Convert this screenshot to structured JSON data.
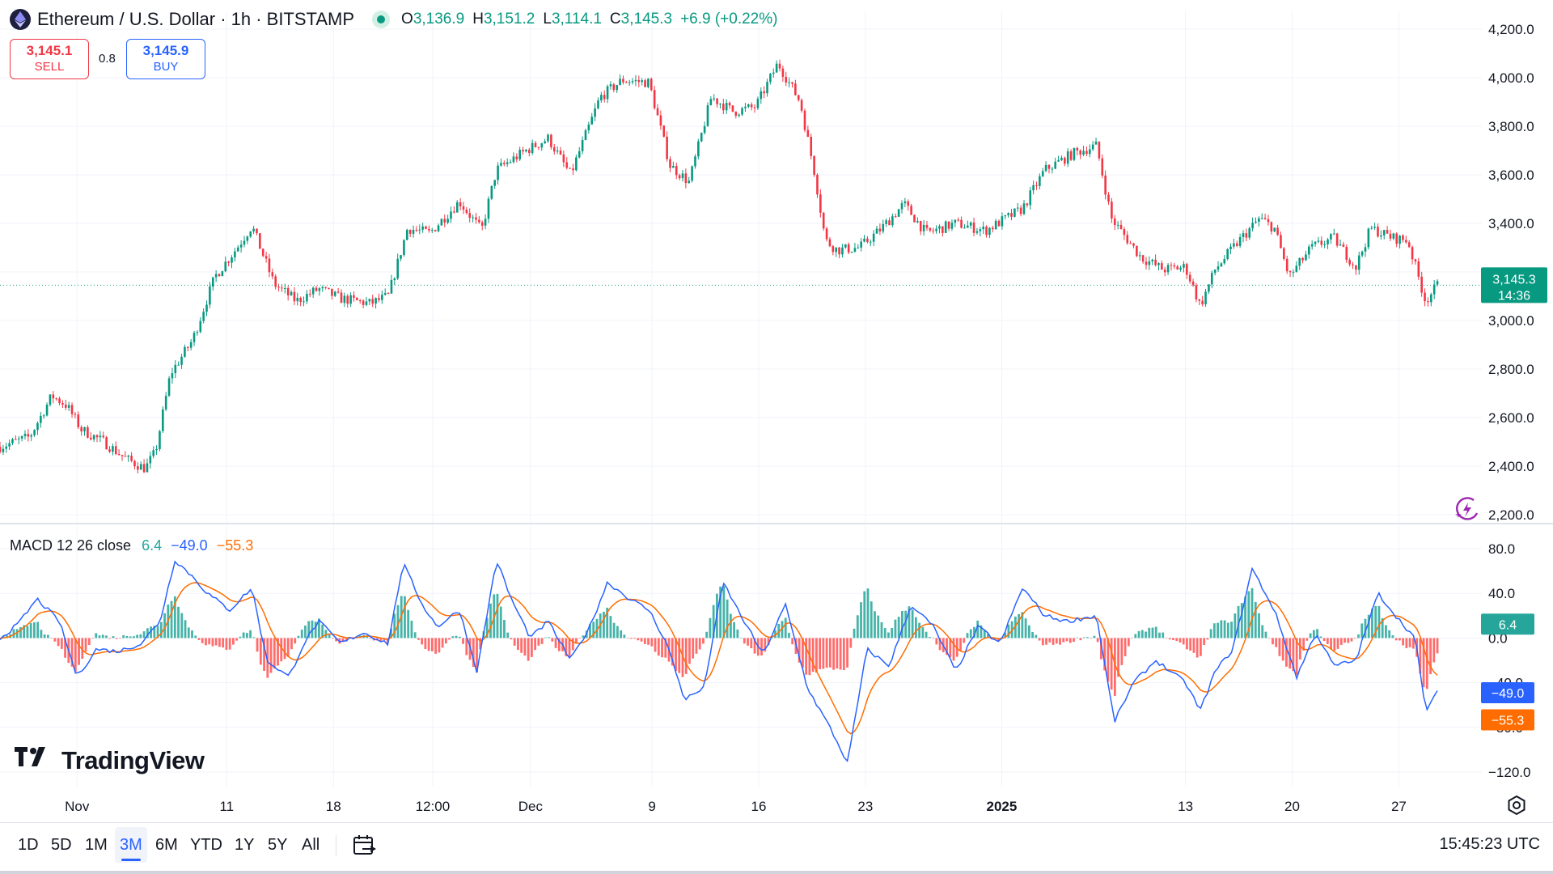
{
  "header": {
    "symbol": "Ethereum / U.S. Dollar · 1h · BITSTAMP",
    "ohlc": {
      "o": "3,136.9",
      "h": "3,151.2",
      "l": "3,114.1",
      "c": "3,145.3"
    },
    "ohlc_labels": {
      "o": "O",
      "h": "H",
      "l": "L",
      "c": "C"
    },
    "change": "+6.9 (+0.22%)"
  },
  "trade": {
    "sell_price": "3,145.1",
    "sell_label": "SELL",
    "spread": "0.8",
    "buy_price": "3,145.9",
    "buy_label": "BUY"
  },
  "macd_legend": {
    "name": "MACD 12 26 close",
    "hist": "6.4",
    "macd": "−49.0",
    "signal": "−55.3"
  },
  "brand": "TradingView",
  "timeframes": [
    "1D",
    "5D",
    "1M",
    "3M",
    "6M",
    "YTD",
    "1Y",
    "5Y",
    "All"
  ],
  "active_timeframe": "3M",
  "clock": "15:45:23 UTC",
  "colors": {
    "up": "#089981",
    "down": "#f23645",
    "macd": "#2962ff",
    "signal": "#ff6d00",
    "hist_up": "#26a69a",
    "hist_down": "#ff5252"
  },
  "icons": [
    "ethereum-icon",
    "live-dot-icon",
    "calendar-range-icon",
    "gear-icon",
    "ai-assistant-icon"
  ],
  "chart_data": [
    {
      "type": "candlestick",
      "title": "Ethereum / U.S. Dollar · 1h · BITSTAMP",
      "ylim": [
        2200,
        4200
      ],
      "y_ticks": [
        "4,200.0",
        "4,000.0",
        "3,800.0",
        "3,600.0",
        "3,400.0",
        "3,200.0",
        "3,000.0",
        "2,800.0",
        "2,600.0",
        "2,400.0",
        "2,200.0"
      ],
      "y_tick_values": [
        4200,
        4000,
        3800,
        3600,
        3400,
        3200,
        3000,
        2800,
        2600,
        2400,
        2200
      ],
      "x_ticks": [
        {
          "label": "Nov",
          "bold": false
        },
        {
          "label": "11",
          "bold": false
        },
        {
          "label": "18",
          "bold": false
        },
        {
          "label": "12:00",
          "bold": false
        },
        {
          "label": "Dec",
          "bold": false
        },
        {
          "label": "9",
          "bold": false
        },
        {
          "label": "16",
          "bold": false
        },
        {
          "label": "23",
          "bold": false
        },
        {
          "label": "2025",
          "bold": true
        },
        {
          "label": "13",
          "bold": false
        },
        {
          "label": "20",
          "bold": false
        },
        {
          "label": "27",
          "bold": false
        }
      ],
      "x_tick_index": [
        0.052,
        0.153,
        0.225,
        0.292,
        0.358,
        0.44,
        0.512,
        0.584,
        0.676,
        0.8,
        0.872,
        0.944
      ],
      "last_price": 3145.3,
      "last_price_label": "3,145.3",
      "countdown": "14:36",
      "close_path": [
        [
          0,
          2480
        ],
        [
          0.02,
          2520
        ],
        [
          0.035,
          2690
        ],
        [
          0.045,
          2650
        ],
        [
          0.055,
          2550
        ],
        [
          0.07,
          2500
        ],
        [
          0.085,
          2430
        ],
        [
          0.098,
          2390
        ],
        [
          0.105,
          2460
        ],
        [
          0.115,
          2780
        ],
        [
          0.13,
          2920
        ],
        [
          0.145,
          3180
        ],
        [
          0.16,
          3300
        ],
        [
          0.17,
          3390
        ],
        [
          0.185,
          3150
        ],
        [
          0.2,
          3080
        ],
        [
          0.215,
          3130
        ],
        [
          0.23,
          3090
        ],
        [
          0.25,
          3070
        ],
        [
          0.262,
          3100
        ],
        [
          0.275,
          3380
        ],
        [
          0.29,
          3360
        ],
        [
          0.31,
          3490
        ],
        [
          0.325,
          3370
        ],
        [
          0.335,
          3620
        ],
        [
          0.355,
          3700
        ],
        [
          0.37,
          3750
        ],
        [
          0.385,
          3600
        ],
        [
          0.405,
          3920
        ],
        [
          0.42,
          3990
        ],
        [
          0.438,
          3980
        ],
        [
          0.452,
          3640
        ],
        [
          0.465,
          3570
        ],
        [
          0.48,
          3920
        ],
        [
          0.495,
          3860
        ],
        [
          0.51,
          3880
        ],
        [
          0.525,
          4060
        ],
        [
          0.54,
          3900
        ],
        [
          0.55,
          3600
        ],
        [
          0.557,
          3330
        ],
        [
          0.565,
          3290
        ],
        [
          0.58,
          3300
        ],
        [
          0.595,
          3380
        ],
        [
          0.61,
          3480
        ],
        [
          0.625,
          3360
        ],
        [
          0.645,
          3400
        ],
        [
          0.665,
          3370
        ],
        [
          0.69,
          3460
        ],
        [
          0.705,
          3620
        ],
        [
          0.725,
          3690
        ],
        [
          0.74,
          3720
        ],
        [
          0.75,
          3420
        ],
        [
          0.77,
          3260
        ],
        [
          0.785,
          3210
        ],
        [
          0.8,
          3220
        ],
        [
          0.81,
          3060
        ],
        [
          0.82,
          3210
        ],
        [
          0.835,
          3320
        ],
        [
          0.85,
          3420
        ],
        [
          0.86,
          3380
        ],
        [
          0.87,
          3180
        ],
        [
          0.885,
          3300
        ],
        [
          0.9,
          3340
        ],
        [
          0.915,
          3220
        ],
        [
          0.925,
          3380
        ],
        [
          0.94,
          3340
        ],
        [
          0.95,
          3330
        ],
        [
          0.962,
          3080
        ],
        [
          0.97,
          3145
        ]
      ]
    },
    {
      "type": "line",
      "title": "MACD 12 26 close",
      "ylim": [
        -120,
        80
      ],
      "y_ticks": [
        "80.0",
        "40.0",
        "0.0",
        "−40.0",
        "−80.0",
        "−120.0"
      ],
      "y_tick_values": [
        80,
        40,
        0,
        -40,
        -80,
        -120
      ],
      "series": [
        {
          "name": "MACD",
          "last": -49.0,
          "last_label": "−49.0"
        },
        {
          "name": "Signal",
          "last": -55.3,
          "last_label": "−55.3"
        },
        {
          "name": "Histogram",
          "last": 6.4,
          "last_label": "6.4"
        }
      ],
      "macd_path": [
        [
          0,
          0
        ],
        [
          0.012,
          12
        ],
        [
          0.025,
          35
        ],
        [
          0.04,
          15
        ],
        [
          0.052,
          -35
        ],
        [
          0.065,
          -10
        ],
        [
          0.08,
          -12
        ],
        [
          0.095,
          -5
        ],
        [
          0.108,
          15
        ],
        [
          0.118,
          70
        ],
        [
          0.13,
          55
        ],
        [
          0.14,
          40
        ],
        [
          0.155,
          25
        ],
        [
          0.17,
          45
        ],
        [
          0.18,
          -20
        ],
        [
          0.195,
          -35
        ],
        [
          0.205,
          -5
        ],
        [
          0.215,
          15
        ],
        [
          0.23,
          -5
        ],
        [
          0.245,
          5
        ],
        [
          0.262,
          -5
        ],
        [
          0.272,
          67
        ],
        [
          0.285,
          30
        ],
        [
          0.295,
          10
        ],
        [
          0.31,
          25
        ],
        [
          0.322,
          -30
        ],
        [
          0.335,
          70
        ],
        [
          0.345,
          35
        ],
        [
          0.358,
          0
        ],
        [
          0.37,
          15
        ],
        [
          0.385,
          -20
        ],
        [
          0.398,
          10
        ],
        [
          0.41,
          50
        ],
        [
          0.425,
          35
        ],
        [
          0.438,
          25
        ],
        [
          0.45,
          -5
        ],
        [
          0.462,
          -55
        ],
        [
          0.475,
          -45
        ],
        [
          0.488,
          50
        ],
        [
          0.5,
          20
        ],
        [
          0.515,
          -15
        ],
        [
          0.53,
          30
        ],
        [
          0.545,
          -45
        ],
        [
          0.56,
          -80
        ],
        [
          0.572,
          -112
        ],
        [
          0.585,
          -10
        ],
        [
          0.6,
          -25
        ],
        [
          0.615,
          30
        ],
        [
          0.63,
          10
        ],
        [
          0.645,
          -30
        ],
        [
          0.66,
          10
        ],
        [
          0.675,
          -5
        ],
        [
          0.69,
          45
        ],
        [
          0.705,
          20
        ],
        [
          0.72,
          15
        ],
        [
          0.74,
          20
        ],
        [
          0.752,
          -75
        ],
        [
          0.765,
          -40
        ],
        [
          0.78,
          -20
        ],
        [
          0.8,
          -40
        ],
        [
          0.81,
          -65
        ],
        [
          0.82,
          -30
        ],
        [
          0.832,
          -10
        ],
        [
          0.845,
          62
        ],
        [
          0.86,
          25
        ],
        [
          0.875,
          -35
        ],
        [
          0.888,
          5
        ],
        [
          0.9,
          -25
        ],
        [
          0.915,
          -20
        ],
        [
          0.93,
          40
        ],
        [
          0.945,
          15
        ],
        [
          0.955,
          0
        ],
        [
          0.962,
          -65
        ],
        [
          0.97,
          -49
        ]
      ]
    }
  ]
}
